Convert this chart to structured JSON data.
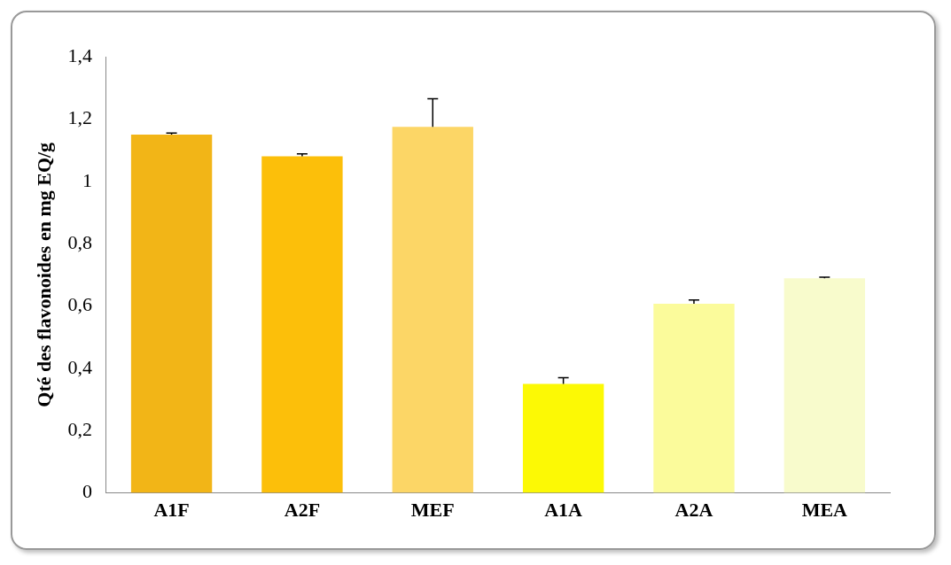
{
  "chart_data": {
    "type": "bar",
    "ylabel": "Qté des flavonoides en mg EQ/g",
    "categories": [
      "A1F",
      "A2F",
      "MEF",
      "A1A",
      "A2A",
      "MEA"
    ],
    "values": [
      1.15,
      1.08,
      1.175,
      0.35,
      0.607,
      0.689
    ],
    "colors": [
      "#f2b517",
      "#fcbf0a",
      "#fcd666",
      "#fcf905",
      "#fbfb9b",
      "#f8fbcc"
    ],
    "errors": [
      [
        1.15,
        1.155
      ],
      [
        1.08,
        1.088
      ],
      [
        1.175,
        1.265
      ],
      [
        0.35,
        0.37
      ],
      [
        0.607,
        0.619
      ],
      [
        0.689,
        0.692
      ]
    ],
    "ylim": [
      0,
      1.4
    ],
    "yticks": [
      0,
      {
        "value": 0.2,
        "label": "0,2"
      },
      {
        "value": 0.4,
        "label": "0,4"
      },
      {
        "value": 0.6,
        "label": "0,6"
      },
      {
        "value": 0.8,
        "label": "0,8"
      },
      1,
      {
        "value": 1.2,
        "label": "1,2"
      },
      {
        "value": 1.4,
        "label": "1,4"
      }
    ],
    "grid": false,
    "legend": false
  }
}
